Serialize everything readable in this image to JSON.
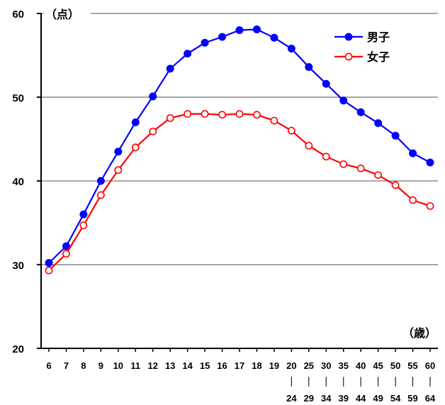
{
  "chart_data": {
    "type": "line",
    "y_unit": "（点）",
    "x_unit": "（歳）",
    "ylim": [
      20,
      60
    ],
    "yticks": [
      20,
      30,
      40,
      50,
      60
    ],
    "grid": true,
    "legend_position": "top-right",
    "categories": [
      {
        "top": "6",
        "bottom": ""
      },
      {
        "top": "7",
        "bottom": ""
      },
      {
        "top": "8",
        "bottom": ""
      },
      {
        "top": "9",
        "bottom": ""
      },
      {
        "top": "10",
        "bottom": ""
      },
      {
        "top": "11",
        "bottom": ""
      },
      {
        "top": "12",
        "bottom": ""
      },
      {
        "top": "13",
        "bottom": ""
      },
      {
        "top": "14",
        "bottom": ""
      },
      {
        "top": "15",
        "bottom": ""
      },
      {
        "top": "16",
        "bottom": ""
      },
      {
        "top": "17",
        "bottom": ""
      },
      {
        "top": "18",
        "bottom": ""
      },
      {
        "top": "19",
        "bottom": ""
      },
      {
        "top": "20",
        "bottom": "24"
      },
      {
        "top": "25",
        "bottom": "29"
      },
      {
        "top": "30",
        "bottom": "34"
      },
      {
        "top": "35",
        "bottom": "39"
      },
      {
        "top": "40",
        "bottom": "44"
      },
      {
        "top": "45",
        "bottom": "49"
      },
      {
        "top": "50",
        "bottom": "54"
      },
      {
        "top": "55",
        "bottom": "59"
      },
      {
        "top": "60",
        "bottom": "64"
      }
    ],
    "range_separator": "｜",
    "series": [
      {
        "name": "男子",
        "color": "#0000ff",
        "marker": "filled-circle",
        "values": [
          30.2,
          32.2,
          36.0,
          40.0,
          43.5,
          47.0,
          50.1,
          53.4,
          55.2,
          56.5,
          57.2,
          58.0,
          58.1,
          57.1,
          55.8,
          53.6,
          51.6,
          49.6,
          48.2,
          46.9,
          45.4,
          43.3,
          42.2
        ]
      },
      {
        "name": "女子",
        "color": "#ff0000",
        "marker": "hollow-circle",
        "values": [
          29.3,
          31.3,
          34.7,
          38.3,
          41.3,
          44.0,
          45.9,
          47.5,
          48.0,
          48.0,
          47.9,
          48.0,
          47.9,
          47.2,
          46.0,
          44.2,
          42.9,
          42.0,
          41.5,
          40.7,
          39.5,
          37.7,
          37.0
        ]
      }
    ]
  }
}
